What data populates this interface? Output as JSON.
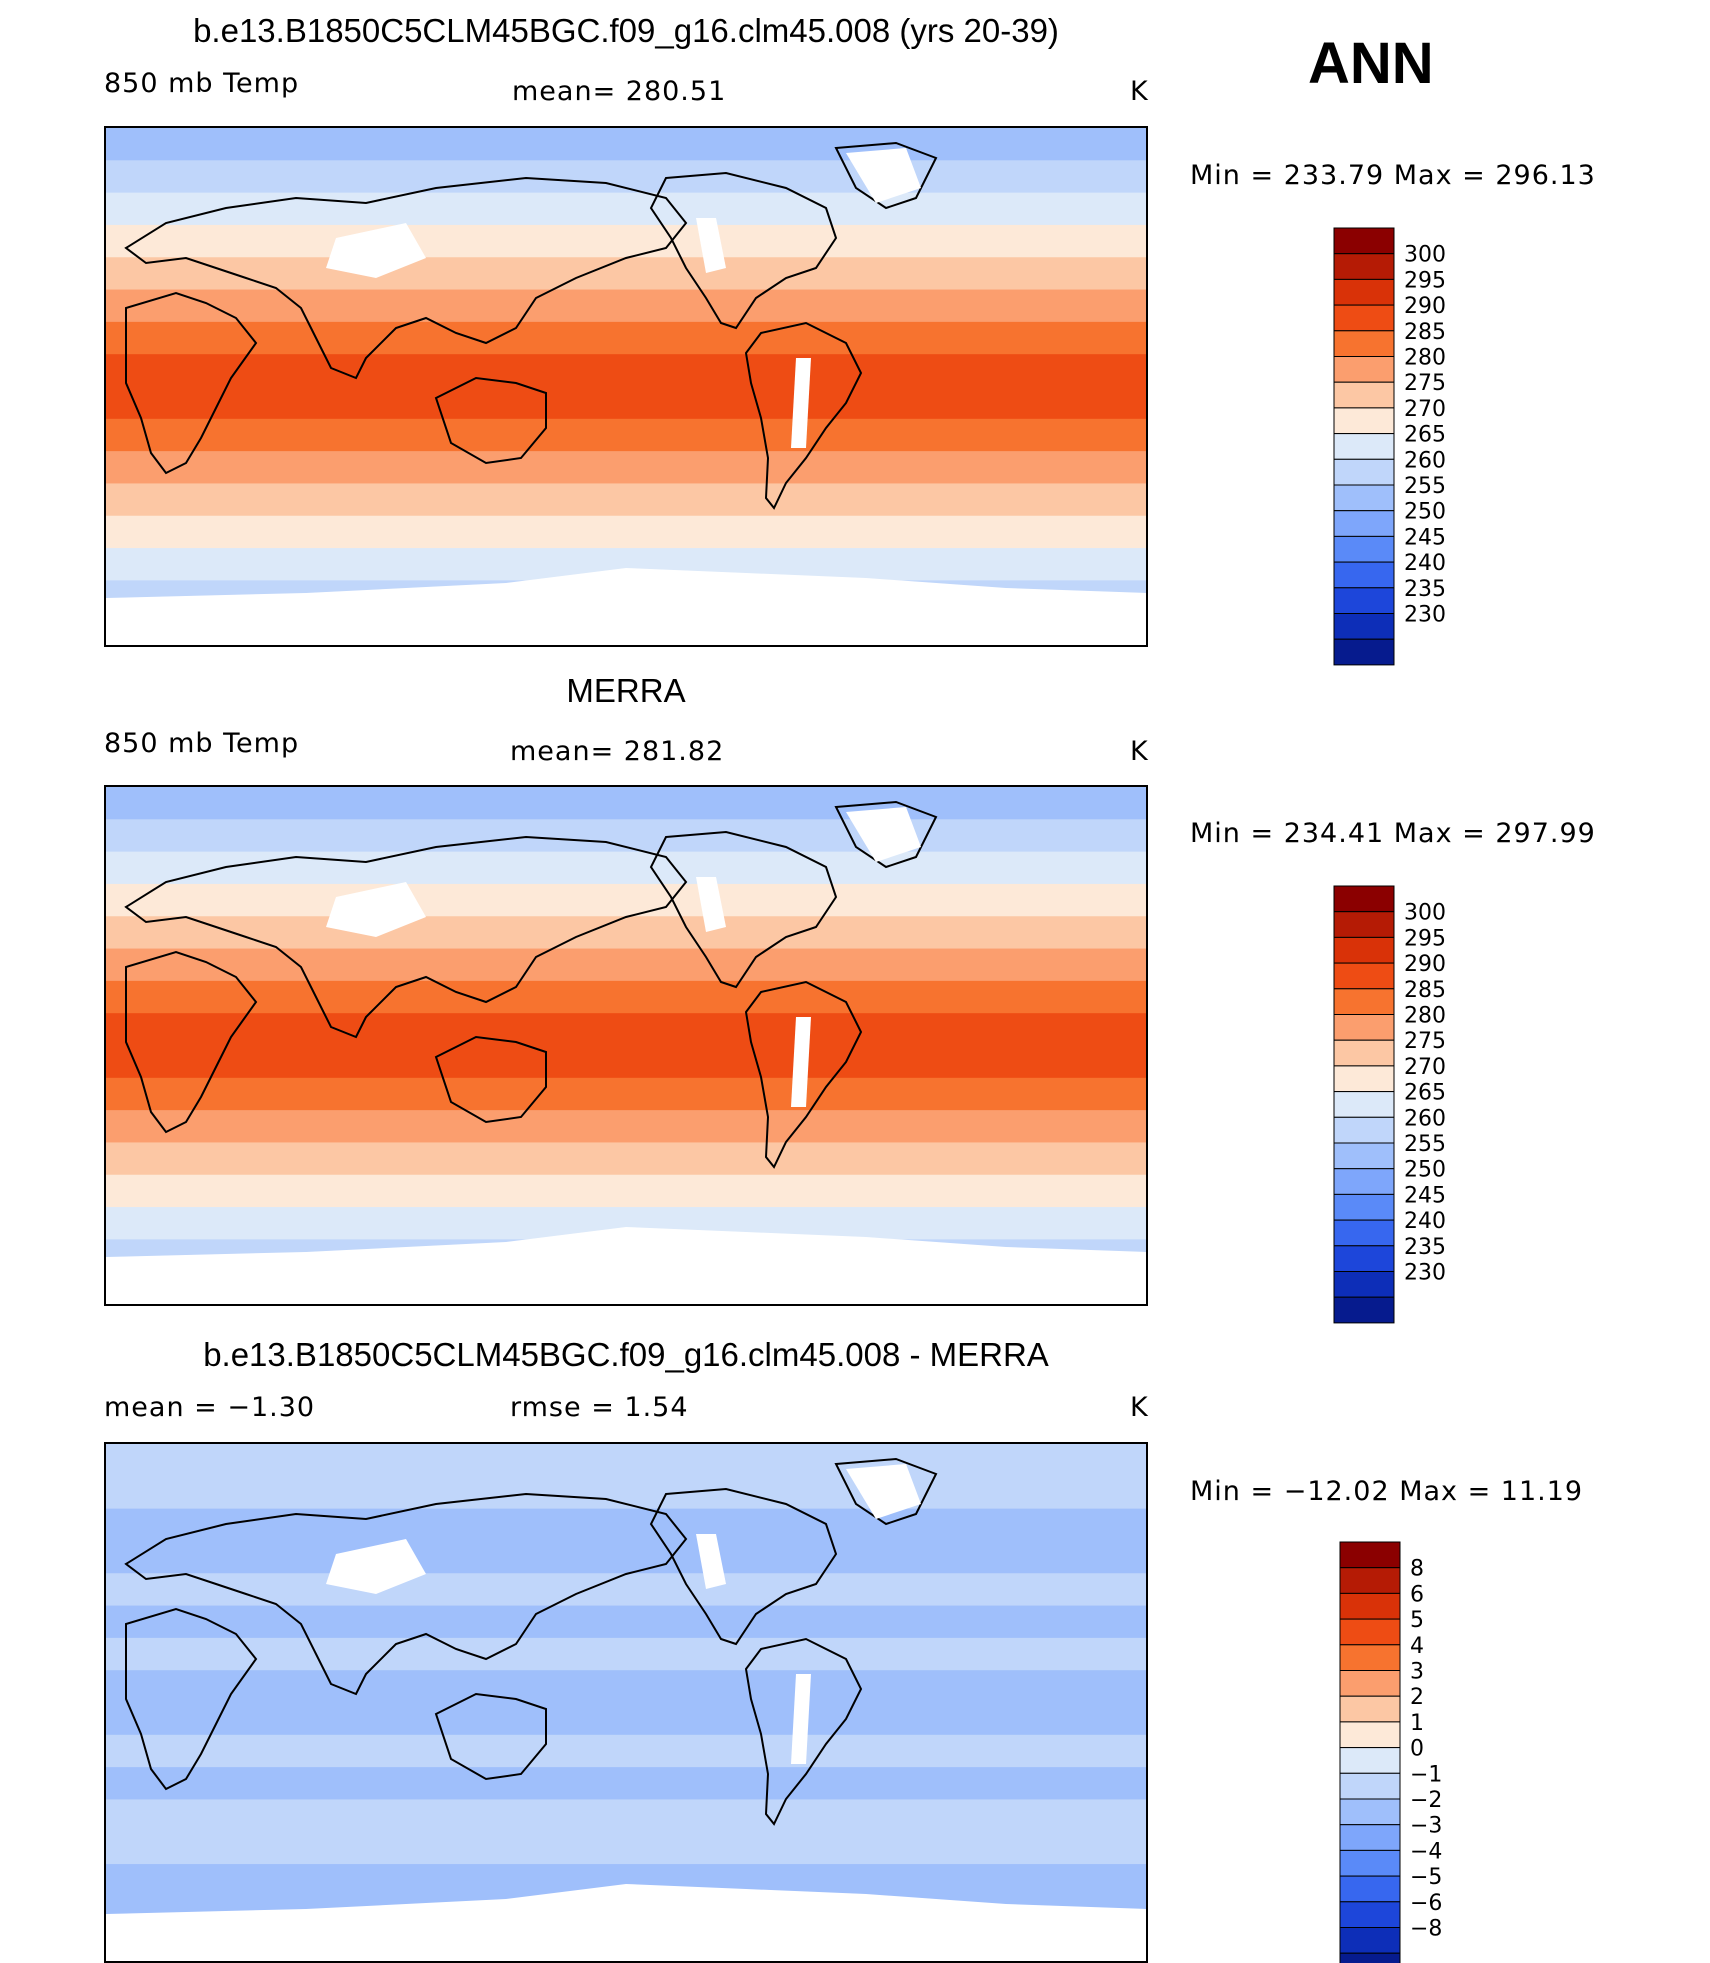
{
  "annotation": "ANN",
  "panels": [
    {
      "title": "b.e13.B1850C5CLM45BGC.f09_g16.clm45.008 (yrs 20-39)",
      "left_label": "850 mb Temp",
      "center_label": "mean= 280.51",
      "units": "K",
      "minmax": "Min = 233.79 Max = 296.13",
      "colorbar_levels": [
        "300",
        "295",
        "290",
        "285",
        "280",
        "275",
        "270",
        "265",
        "260",
        "255",
        "250",
        "245",
        "240",
        "235",
        "230"
      ],
      "colors": [
        "#8b0000",
        "#b51b05",
        "#d93208",
        "#ee4c14",
        "#f7732f",
        "#fb9e6e",
        "#fcc7a4",
        "#fde9d8",
        "#dce9f9",
        "#c0d6fa",
        "#9fbffb",
        "#7ea6fb",
        "#5a8af8",
        "#3767ef",
        "#1d46da",
        "#0d2eb8",
        "#061b8e"
      ]
    },
    {
      "title": "MERRA",
      "left_label": "850 mb Temp",
      "center_label": "mean= 281.82",
      "units": "K",
      "minmax": "Min = 234.41 Max = 297.99",
      "colorbar_levels": [
        "300",
        "295",
        "290",
        "285",
        "280",
        "275",
        "270",
        "265",
        "260",
        "255",
        "250",
        "245",
        "240",
        "235",
        "230"
      ],
      "colors": [
        "#8b0000",
        "#b51b05",
        "#d93208",
        "#ee4c14",
        "#f7732f",
        "#fb9e6e",
        "#fcc7a4",
        "#fde9d8",
        "#dce9f9",
        "#c0d6fa",
        "#9fbffb",
        "#7ea6fb",
        "#5a8af8",
        "#3767ef",
        "#1d46da",
        "#0d2eb8",
        "#061b8e"
      ]
    },
    {
      "title": "b.e13.B1850C5CLM45BGC.f09_g16.clm45.008 - MERRA",
      "left_label": "mean =   −1.30",
      "center_label": "rmse =     1.54",
      "units": "K",
      "minmax": "Min = −12.02 Max =   11.19",
      "colorbar_levels": [
        "8",
        "6",
        "5",
        "4",
        "3",
        "2",
        "1",
        "0",
        "−1",
        "−2",
        "−3",
        "−4",
        "−5",
        "−6",
        "−8"
      ],
      "colors": [
        "#8b0000",
        "#b51b05",
        "#d93208",
        "#ee4c14",
        "#f7732f",
        "#fb9e6e",
        "#fcc7a4",
        "#fde9d8",
        "#dce9f9",
        "#c0d6fa",
        "#9fbffb",
        "#7ea6fb",
        "#5a8af8",
        "#3767ef",
        "#1d46da",
        "#0d2eb8",
        "#061b8e"
      ]
    }
  ]
}
